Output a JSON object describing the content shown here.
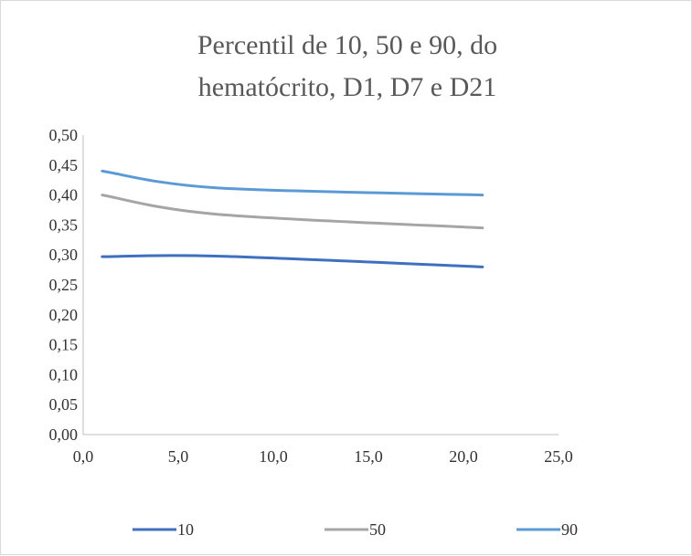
{
  "chart_data": {
    "type": "line",
    "title_lines": [
      "Percentil de 10, 50 e 90, do",
      "hematócrito, D1, D7 e D21"
    ],
    "xlabel": "",
    "ylabel": "",
    "xlim": [
      0,
      25
    ],
    "ylim": [
      0,
      0.5
    ],
    "x_ticks": [
      0,
      5,
      10,
      15,
      20,
      25
    ],
    "x_tick_labels": [
      "0,0",
      "5,0",
      "10,0",
      "15,0",
      "20,0",
      "25,0"
    ],
    "y_ticks": [
      0,
      0.05,
      0.1,
      0.15,
      0.2,
      0.25,
      0.3,
      0.35,
      0.4,
      0.45,
      0.5
    ],
    "y_tick_labels": [
      "0,00",
      "0,05",
      "0,10",
      "0,15",
      "0,20",
      "0,25",
      "0,30",
      "0,35",
      "0,40",
      "0,45",
      "0,50"
    ],
    "grid": false,
    "smooth": true,
    "legend_position": "bottom",
    "series": [
      {
        "name": "10",
        "color": "#3f6fbf",
        "x": [
          1,
          7,
          21
        ],
        "y": [
          0.297,
          0.298,
          0.28
        ]
      },
      {
        "name": "50",
        "color": "#a5a5a5",
        "x": [
          1,
          7,
          21
        ],
        "y": [
          0.4,
          0.368,
          0.345
        ]
      },
      {
        "name": "90",
        "color": "#5b9bd5",
        "x": [
          1,
          7,
          21
        ],
        "y": [
          0.44,
          0.412,
          0.4
        ]
      }
    ]
  }
}
